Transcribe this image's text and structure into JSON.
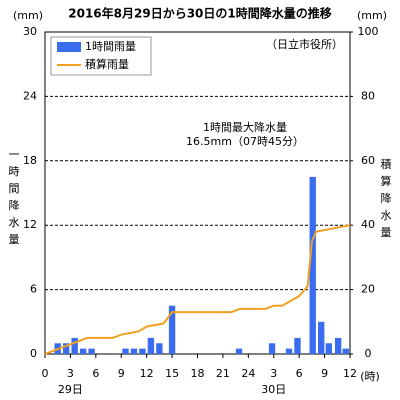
{
  "chart_data": {
    "type": "bar-line",
    "title": "2016年8月29日から30日の1時間降水量の推移",
    "station": "（日立市役所）",
    "y_unit": "(mm)",
    "y2_unit": "(mm)",
    "x_unit": "(時)",
    "ylabel": "一時間降水量",
    "y2label": "積算降水量",
    "day_labels": [
      {
        "x": 3,
        "label": "29日"
      },
      {
        "x": 27,
        "label": "30日"
      }
    ],
    "annotation": [
      "1時間最大降水量",
      "16.5mm（07時45分）"
    ],
    "xlim": [
      0,
      36
    ],
    "xticks": [
      0,
      3,
      6,
      9,
      12,
      15,
      18,
      21,
      24,
      {
        "value": 27,
        "label": "3"
      },
      {
        "value": 30,
        "label": "6"
      },
      {
        "value": 33,
        "label": "9"
      },
      {
        "value": 36,
        "label": "12"
      }
    ],
    "ylim": [
      0,
      30
    ],
    "yticks": [
      0,
      6,
      12,
      18,
      24,
      30
    ],
    "y2lim": [
      0,
      100
    ],
    "y2ticks": [
      0,
      20,
      40,
      60,
      80,
      100
    ],
    "grid": true,
    "legend": "upper left",
    "series": [
      {
        "name": "1時間雨量",
        "color": "#3a6cf0",
        "type": "bar",
        "x": [
          1.5,
          2.5,
          3.5,
          4.5,
          5.5,
          9.5,
          10.5,
          11.5,
          12.5,
          13.5,
          15,
          22.9,
          26.8,
          28.8,
          29.8,
          31.6,
          32.6,
          33.5,
          34.6,
          35.5
        ],
        "values": [
          1,
          1,
          1.5,
          0.5,
          0.5,
          0.5,
          0.5,
          0.5,
          1.5,
          1,
          4.5,
          0.5,
          1,
          0.5,
          1.5,
          16.5,
          3,
          1,
          1.5,
          0.5
        ]
      },
      {
        "name": "積算雨量",
        "color": "#f0a020",
        "type": "line",
        "axis": "y2",
        "x": [
          0,
          1,
          2,
          3,
          4,
          5,
          8,
          9,
          11,
          12,
          13,
          14,
          15,
          22,
          23,
          26,
          27,
          28,
          29,
          30,
          31,
          31.5,
          32,
          34,
          36
        ],
        "values": [
          0,
          1,
          2,
          3,
          4,
          5,
          5,
          6,
          7,
          8.5,
          9,
          9.5,
          13,
          13,
          14,
          14,
          15,
          15,
          16.5,
          18,
          21,
          35,
          38,
          39,
          40
        ]
      }
    ]
  }
}
